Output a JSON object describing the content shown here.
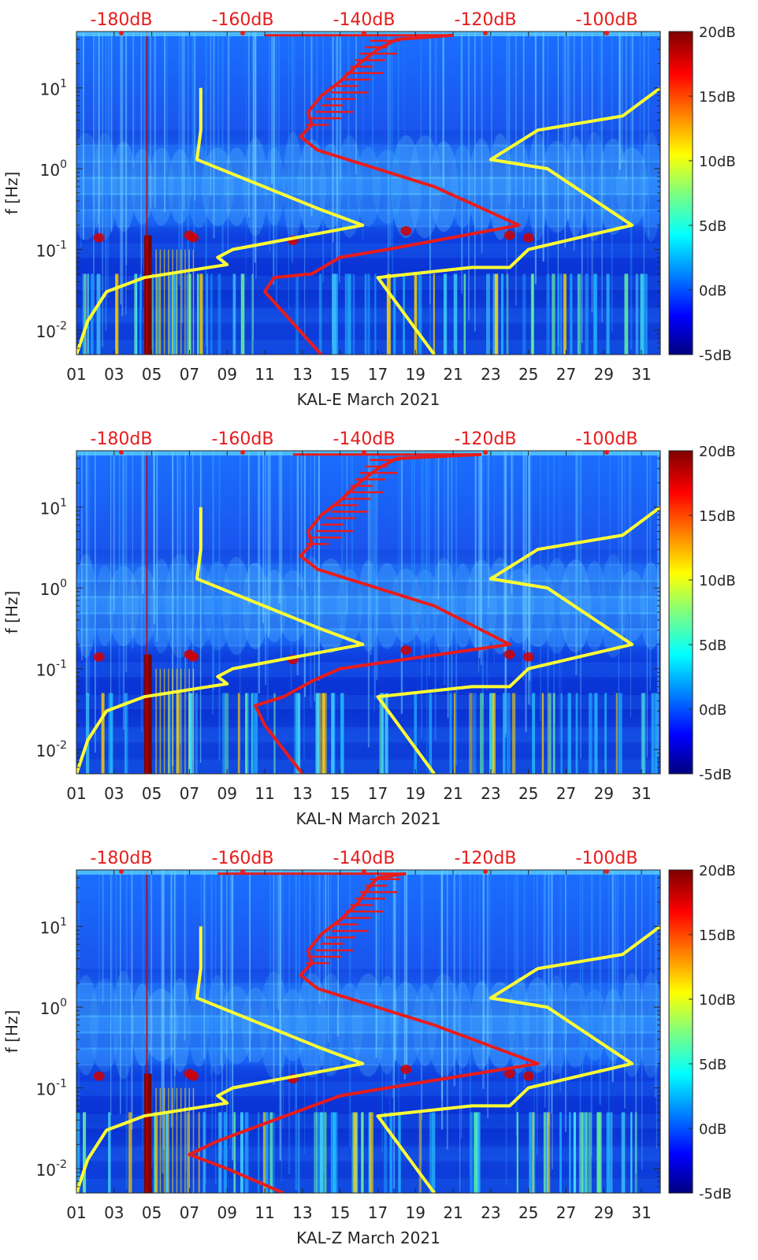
{
  "chart_data": [
    {
      "type": "heatmap",
      "xlabel": "KAL-E March 2021",
      "ylabel": "f [Hz]",
      "x_ticks": [
        "01",
        "03",
        "05",
        "07",
        "09",
        "11",
        "13",
        "15",
        "17",
        "19",
        "21",
        "23",
        "25",
        "27",
        "29",
        "31"
      ],
      "y_ticks": [
        "10-2",
        "10-1",
        "100",
        "101"
      ],
      "top_ticks": [
        "-180dB",
        "-160dB",
        "-140dB",
        "-120dB",
        "-100dB"
      ],
      "colorbar": {
        "ticks": [
          "20dB",
          "15dB",
          "10dB",
          "5dB",
          "0dB",
          "-5dB"
        ],
        "range": [
          -5,
          20
        ]
      },
      "xlim": [
        1,
        32
      ],
      "ylim": [
        0.005,
        50
      ],
      "line_color_yellow": "#ffff33",
      "line_color_red": "#e81c1c",
      "series": [
        {
          "color": "#ffff33",
          "points": [
            [
              1.0,
              0.005
            ],
            [
              1.6,
              0.013
            ],
            [
              2.6,
              0.03
            ],
            [
              4.6,
              0.045
            ],
            [
              9.0,
              0.065
            ],
            [
              8.5,
              0.08
            ],
            [
              9.3,
              0.1
            ],
            [
              16.2,
              0.2
            ],
            [
              14.0,
              0.31
            ],
            [
              7.4,
              1.3
            ],
            [
              7.6,
              3.0
            ],
            [
              7.6,
              10
            ]
          ]
        },
        {
          "color": "#ffff33",
          "points": [
            [
              20.0,
              0.005
            ],
            [
              17.0,
              0.045
            ],
            [
              22.0,
              0.06
            ],
            [
              24.0,
              0.06
            ],
            [
              25.0,
              0.1
            ],
            [
              30.5,
              0.2
            ],
            [
              26.0,
              1.0
            ],
            [
              23.0,
              1.3
            ],
            [
              25.5,
              3.0
            ],
            [
              30.0,
              4.5
            ],
            [
              32.0,
              10
            ]
          ]
        },
        {
          "color": "#e81c1c",
          "points": [
            [
              14.0,
              0.005
            ],
            [
              11.0,
              0.03
            ],
            [
              11.5,
              0.045
            ],
            [
              13.5,
              0.05
            ],
            [
              15.0,
              0.08
            ],
            [
              17.5,
              0.1
            ],
            [
              24.5,
              0.2
            ],
            [
              20.0,
              0.6
            ],
            [
              13.8,
              1.7
            ],
            [
              12.9,
              2.5
            ],
            [
              13.5,
              3.5
            ],
            [
              13.3,
              5
            ],
            [
              14.0,
              8
            ],
            [
              15.0,
              12
            ],
            [
              16.0,
              20
            ],
            [
              17.0,
              30
            ],
            [
              18.0,
              40
            ],
            [
              21.0,
              45
            ]
          ]
        }
      ]
    },
    {
      "type": "heatmap",
      "xlabel": "KAL-N March 2021",
      "ylabel": "f [Hz]",
      "x_ticks": [
        "01",
        "03",
        "05",
        "07",
        "09",
        "11",
        "13",
        "15",
        "17",
        "19",
        "21",
        "23",
        "25",
        "27",
        "29",
        "31"
      ],
      "y_ticks": [
        "10-2",
        "10-1",
        "100",
        "101"
      ],
      "top_ticks": [
        "-180dB",
        "-160dB",
        "-140dB",
        "-120dB",
        "-100dB"
      ],
      "colorbar": {
        "ticks": [
          "20dB",
          "15dB",
          "10dB",
          "5dB",
          "0dB",
          "-5dB"
        ],
        "range": [
          -5,
          20
        ]
      },
      "xlim": [
        1,
        32
      ],
      "ylim": [
        0.005,
        50
      ],
      "series": [
        {
          "color": "#ffff33",
          "points": [
            [
              1.0,
              0.005
            ],
            [
              1.6,
              0.013
            ],
            [
              2.6,
              0.03
            ],
            [
              4.6,
              0.045
            ],
            [
              9.0,
              0.065
            ],
            [
              8.5,
              0.08
            ],
            [
              9.3,
              0.1
            ],
            [
              16.2,
              0.2
            ],
            [
              14.0,
              0.31
            ],
            [
              7.4,
              1.3
            ],
            [
              7.6,
              3.0
            ],
            [
              7.6,
              10
            ]
          ]
        },
        {
          "color": "#ffff33",
          "points": [
            [
              20.0,
              0.005
            ],
            [
              17.0,
              0.045
            ],
            [
              22.0,
              0.06
            ],
            [
              24.0,
              0.06
            ],
            [
              25.0,
              0.1
            ],
            [
              30.5,
              0.2
            ],
            [
              26.0,
              1.0
            ],
            [
              23.0,
              1.3
            ],
            [
              25.5,
              3.0
            ],
            [
              30.0,
              4.5
            ],
            [
              32.0,
              10
            ]
          ]
        },
        {
          "color": "#e81c1c",
          "points": [
            [
              13.0,
              0.005
            ],
            [
              11.0,
              0.02
            ],
            [
              10.5,
              0.035
            ],
            [
              12.0,
              0.045
            ],
            [
              13.5,
              0.07
            ],
            [
              15.0,
              0.1
            ],
            [
              24.0,
              0.2
            ],
            [
              20.0,
              0.6
            ],
            [
              13.8,
              1.7
            ],
            [
              12.9,
              2.5
            ],
            [
              13.5,
              3.5
            ],
            [
              13.3,
              5
            ],
            [
              14.0,
              8
            ],
            [
              15.0,
              12
            ],
            [
              16.0,
              20
            ],
            [
              17.0,
              30
            ],
            [
              18.0,
              40
            ],
            [
              22.5,
              45
            ]
          ]
        }
      ]
    },
    {
      "type": "heatmap",
      "xlabel": "KAL-Z March 2021",
      "ylabel": "f [Hz]",
      "x_ticks": [
        "01",
        "03",
        "05",
        "07",
        "09",
        "11",
        "13",
        "15",
        "17",
        "19",
        "21",
        "23",
        "25",
        "27",
        "29",
        "31"
      ],
      "y_ticks": [
        "10-2",
        "10-1",
        "100",
        "101"
      ],
      "top_ticks": [
        "-180dB",
        "-160dB",
        "-140dB",
        "-120dB",
        "-100dB"
      ],
      "colorbar": {
        "ticks": [
          "20dB",
          "15dB",
          "10dB",
          "5dB",
          "0dB",
          "-5dB"
        ],
        "range": [
          -5,
          20
        ]
      },
      "xlim": [
        1,
        32
      ],
      "ylim": [
        0.005,
        50
      ],
      "series": [
        {
          "color": "#ffff33",
          "points": [
            [
              1.0,
              0.005
            ],
            [
              1.6,
              0.013
            ],
            [
              2.6,
              0.03
            ],
            [
              4.6,
              0.045
            ],
            [
              9.0,
              0.065
            ],
            [
              8.5,
              0.08
            ],
            [
              9.3,
              0.1
            ],
            [
              16.2,
              0.2
            ],
            [
              14.0,
              0.31
            ],
            [
              7.4,
              1.3
            ],
            [
              7.6,
              3.0
            ],
            [
              7.6,
              10
            ]
          ]
        },
        {
          "color": "#ffff33",
          "points": [
            [
              20.0,
              0.005
            ],
            [
              17.0,
              0.045
            ],
            [
              22.0,
              0.06
            ],
            [
              24.0,
              0.06
            ],
            [
              25.0,
              0.1
            ],
            [
              30.5,
              0.2
            ],
            [
              26.0,
              1.0
            ],
            [
              23.0,
              1.3
            ],
            [
              25.5,
              3.0
            ],
            [
              30.0,
              4.5
            ],
            [
              32.0,
              10
            ]
          ]
        },
        {
          "color": "#e81c1c",
          "points": [
            [
              12.0,
              0.005
            ],
            [
              9.0,
              0.01
            ],
            [
              7.0,
              0.015
            ],
            [
              8.5,
              0.022
            ],
            [
              11.5,
              0.04
            ],
            [
              15.0,
              0.08
            ],
            [
              17.5,
              0.1
            ],
            [
              25.5,
              0.2
            ],
            [
              20.0,
              0.6
            ],
            [
              13.8,
              1.7
            ],
            [
              12.9,
              2.5
            ],
            [
              13.5,
              3.5
            ],
            [
              13.3,
              5
            ],
            [
              14.0,
              8
            ],
            [
              15.0,
              12
            ],
            [
              16.0,
              20
            ],
            [
              16.5,
              30
            ],
            [
              17.0,
              40
            ],
            [
              18.5,
              45
            ]
          ]
        }
      ]
    }
  ]
}
